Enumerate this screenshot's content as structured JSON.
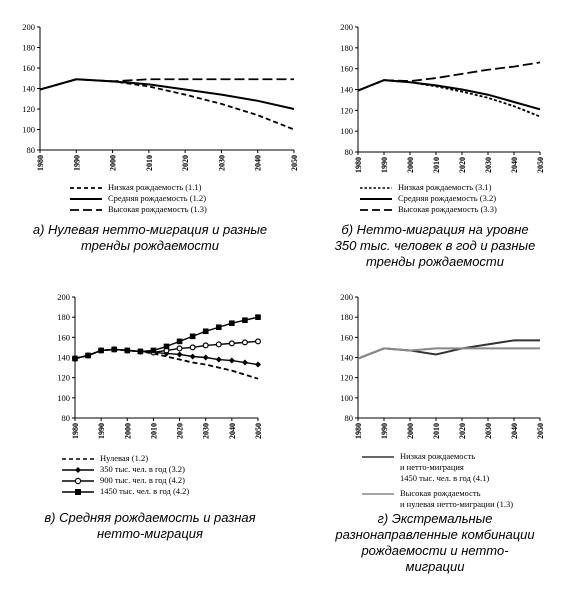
{
  "chart_data": [
    {
      "type": "line",
      "id": "a",
      "caption": "а) Нулевая нетто-миграция и разные тренды рождаемости",
      "x": [
        1980,
        1990,
        2000,
        2010,
        2020,
        2030,
        2040,
        2050
      ],
      "xlim": [
        1980,
        2050
      ],
      "ylim": [
        80,
        200
      ],
      "yticks": [
        80,
        100,
        120,
        140,
        160,
        180,
        200
      ],
      "grid": false,
      "legend_position": "below",
      "series": [
        {
          "name": "Низкая рождаемость (1.1)",
          "style": "dashed",
          "values": [
            139,
            149,
            147,
            142,
            134,
            125,
            114,
            100
          ]
        },
        {
          "name": "Средняя рождаемость (1.2)",
          "style": "solid",
          "values": [
            139,
            149,
            147,
            144,
            139,
            134,
            128,
            120
          ]
        },
        {
          "name": "Высокая рождаемость (1.3)",
          "style": "longdash",
          "values": [
            139,
            149,
            147,
            149,
            149,
            149,
            149,
            149
          ]
        }
      ]
    },
    {
      "type": "line",
      "id": "b",
      "caption": "б) Нетто-миграция на уровне 350 тыс. человек в год и разные тренды рождаемости",
      "x": [
        1980,
        1990,
        2000,
        2010,
        2020,
        2030,
        2040,
        2050
      ],
      "xlim": [
        1980,
        2050
      ],
      "ylim": [
        80,
        200
      ],
      "yticks": [
        80,
        100,
        120,
        140,
        160,
        180,
        200
      ],
      "grid": false,
      "legend_position": "below",
      "series": [
        {
          "name": "Низкая рождаемость (3.1)",
          "style": "dashed",
          "values": [
            139,
            149,
            147,
            143,
            138,
            132,
            124,
            114
          ]
        },
        {
          "name": "Средняя рождаемость (3.2)",
          "style": "solid",
          "values": [
            139,
            149,
            147,
            144,
            140,
            135,
            128,
            121
          ]
        },
        {
          "name": "Высокая рождаемость (3.3)",
          "style": "longdash",
          "values": [
            139,
            149,
            148,
            151,
            155,
            159,
            162,
            166
          ]
        }
      ]
    },
    {
      "type": "line",
      "id": "c",
      "caption": "в) Средняя рождаемость и разная нетто-миграция",
      "x": [
        1980,
        1985,
        1990,
        1995,
        2000,
        2005,
        2010,
        2015,
        2020,
        2025,
        2030,
        2035,
        2040,
        2045,
        2050
      ],
      "xticks": [
        1980,
        1990,
        2000,
        2010,
        2020,
        2030,
        2040,
        2050
      ],
      "xlim": [
        1980,
        2050
      ],
      "ylim": [
        80,
        200
      ],
      "yticks": [
        80,
        100,
        120,
        140,
        160,
        180,
        200
      ],
      "grid": false,
      "legend_position": "below",
      "series": [
        {
          "name": "Нулевая (1.2)",
          "style": "dashed",
          "marker": "none",
          "values": [
            139,
            142,
            147,
            148,
            147,
            146,
            144,
            141,
            138,
            135,
            133,
            130,
            127,
            123,
            119
          ]
        },
        {
          "name": "350 тыс. чел. в год (3.2)",
          "style": "solid",
          "marker": "diamond",
          "values": [
            139,
            142,
            147,
            148,
            147,
            146,
            145,
            144,
            143,
            141,
            140,
            138,
            137,
            135,
            133
          ]
        },
        {
          "name": "900 тыс. чел. в год (4.2)",
          "style": "solid",
          "marker": "circle",
          "values": [
            139,
            142,
            147,
            148,
            147,
            146,
            145,
            147,
            149,
            150,
            152,
            153,
            154,
            155,
            156
          ]
        },
        {
          "name": "1450 тыс. чел. в год (4.2)",
          "style": "solid",
          "marker": "square",
          "values": [
            139,
            142,
            147,
            148,
            147,
            146,
            147,
            151,
            156,
            161,
            166,
            170,
            174,
            177,
            180
          ]
        }
      ]
    },
    {
      "type": "line",
      "id": "d",
      "caption": "г) Экстремальные разнонаправленные комбинации рождаемости и нетто-миграции",
      "x": [
        1980,
        1990,
        2000,
        2010,
        2020,
        2030,
        2040,
        2050
      ],
      "xlim": [
        1980,
        2050
      ],
      "ylim": [
        80,
        200
      ],
      "yticks": [
        80,
        100,
        120,
        140,
        160,
        180,
        200
      ],
      "grid": false,
      "legend_position": "below",
      "series": [
        {
          "name": "Низкая рождаемость и нетто-миграция 1450 тыс. чел. в год (4.1)",
          "style": "solid",
          "color": "#333333",
          "values": [
            139,
            149,
            147,
            143,
            149,
            153,
            157,
            157
          ]
        },
        {
          "name": "Высокая рождаемость и нулевая нетто-миграция (1.3)",
          "style": "solid",
          "color": "#888888",
          "values": [
            139,
            149,
            147,
            149,
            149,
            149,
            149,
            149
          ]
        }
      ]
    }
  ],
  "legend_text": {
    "a": [
      "Низкая рождаемость (1.1)",
      "Средняя рождаемость (1.2)",
      "Высокая рождаемость (1.3)"
    ],
    "b": [
      "Низкая рождаемость (3.1)",
      "Средняя рождаемость (3.2)",
      "Высокая рождаемость (3.3)"
    ],
    "c": [
      "Нулевая (1.2)",
      "350 тыс. чел. в год (3.2)",
      "900 тыс. чел. в год (4.2)",
      "1450 тыс. чел. в год (4.2)"
    ],
    "d": [
      [
        "Низкая рождаемость",
        "и нетто-миграция",
        "1450 тыс. чел. в год (4.1)"
      ],
      [
        "Высокая рождаемость",
        "и нулевая нетто-миграции (1.3)"
      ]
    ]
  },
  "captions": {
    "a": [
      "а) Нулевая нетто-миграция и разные",
      "тренды рождаемости"
    ],
    "b": [
      "б) Нетто-миграция на уровне",
      "350 тыс. человек в год и разные",
      "тренды рождаемости"
    ],
    "c": [
      "в) Средняя рождаемость и разная",
      "нетто-миграция"
    ],
    "d": [
      "г) Экстремальные",
      "разнонаправленные комбинации",
      "рождаемости и нетто-",
      "миграции"
    ]
  },
  "colors": {
    "line": "#000000",
    "axis": "#000000"
  }
}
